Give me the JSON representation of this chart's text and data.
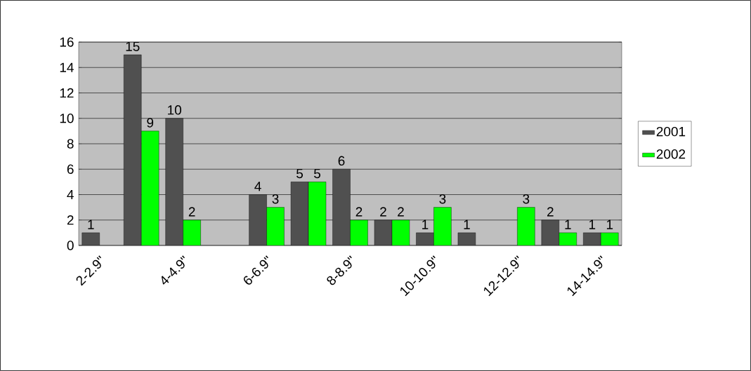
{
  "chart_data": {
    "type": "bar",
    "categories": [
      "2-2.9\"",
      null,
      "4-4.9\"",
      null,
      "6-6.9\"",
      null,
      "8-8.9\"",
      null,
      "10-10.9\"",
      null,
      "12-12.9\"",
      null,
      "14-14.9\""
    ],
    "series": [
      {
        "name": "2001",
        "color": "#505050",
        "values": [
          1,
          15,
          10,
          null,
          4,
          5,
          6,
          2,
          1,
          1,
          null,
          2,
          1
        ]
      },
      {
        "name": "2002",
        "color": "#00ff00",
        "values": [
          null,
          9,
          2,
          null,
          3,
          5,
          2,
          2,
          3,
          null,
          3,
          1,
          1
        ]
      }
    ],
    "ylim": [
      0,
      16
    ],
    "yticks": [
      0,
      2,
      4,
      6,
      8,
      10,
      12,
      14,
      16
    ],
    "grid": "y",
    "legend": "right",
    "data_labels": true
  }
}
